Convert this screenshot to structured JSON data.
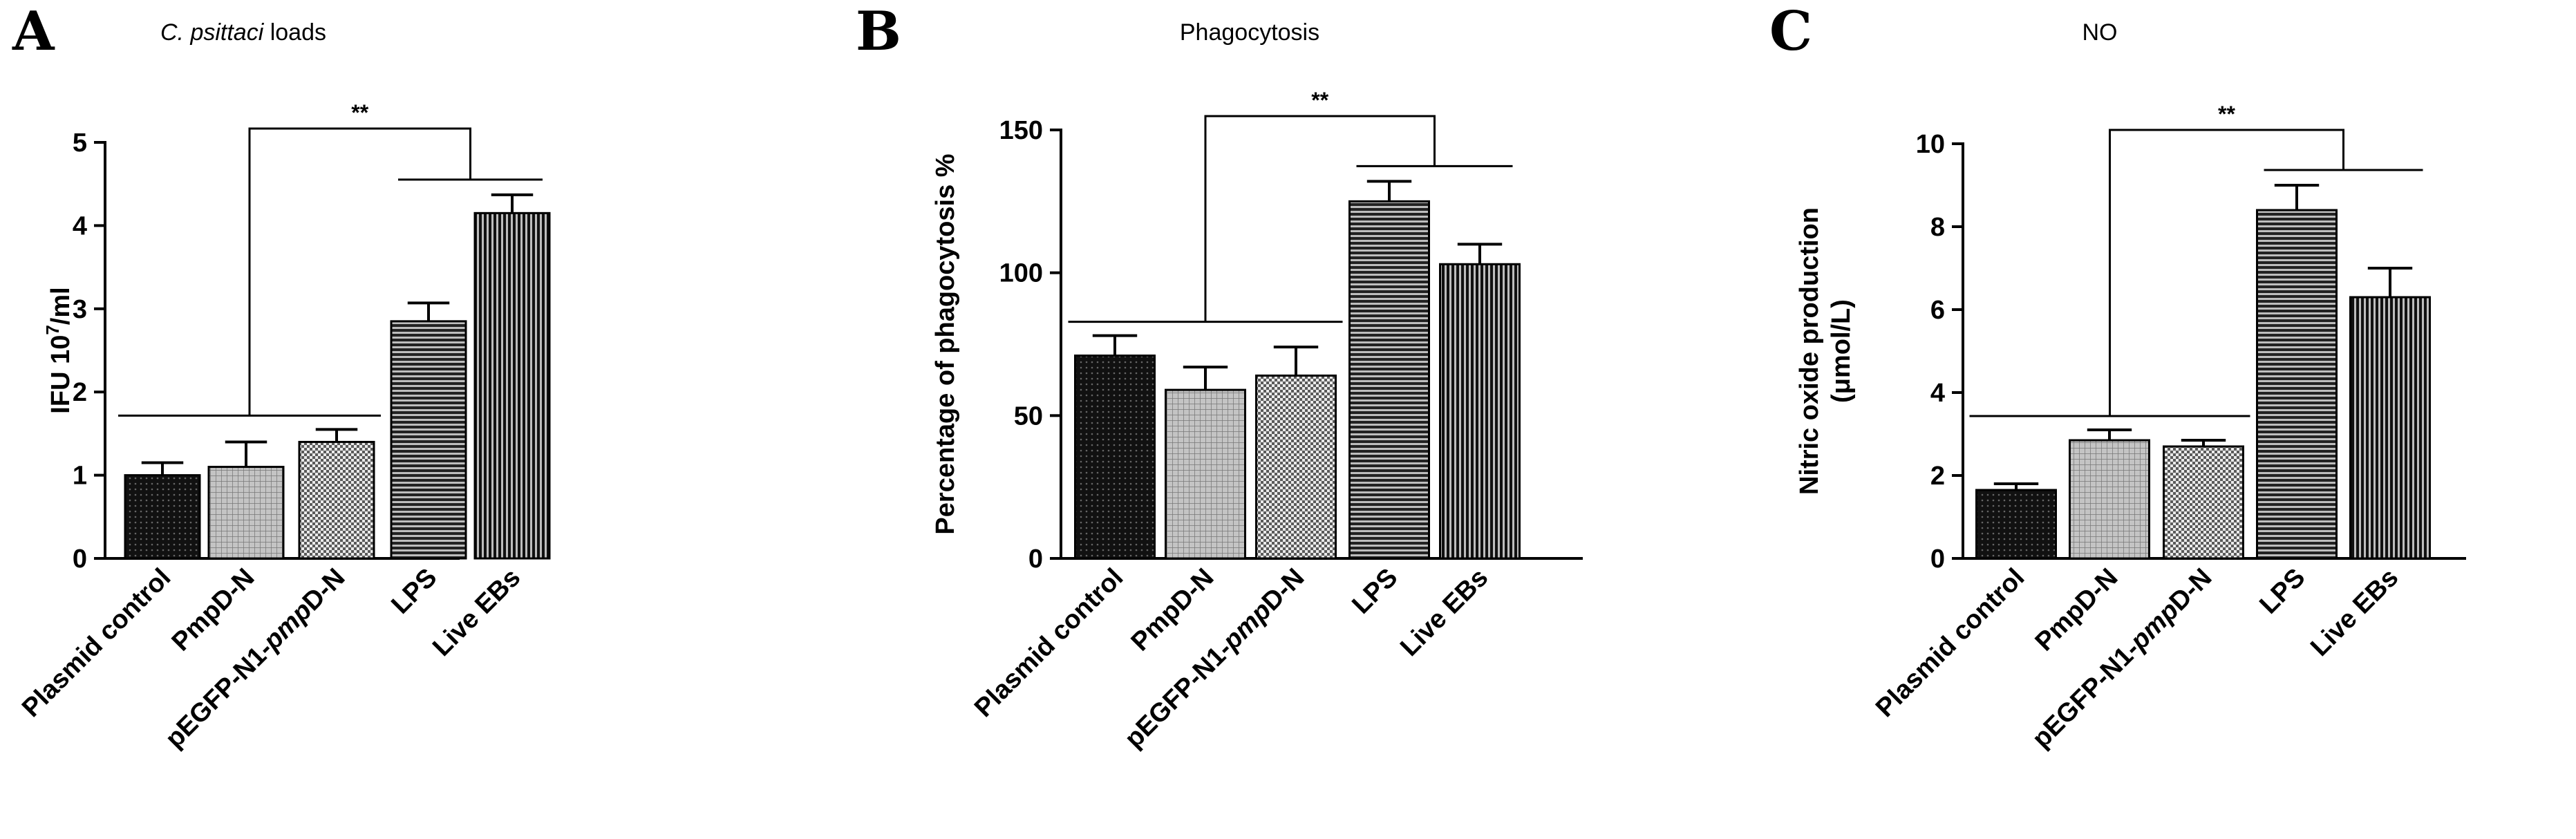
{
  "panels": [
    {
      "letter": "A",
      "title": "C. psittaci loads"
    },
    {
      "letter": "B",
      "title": "Phagocytosis"
    },
    {
      "letter": "C",
      "title": "NO"
    }
  ],
  "chart_data": [
    {
      "type": "bar",
      "title": "C. psittaci loads",
      "title_italic_part": "C. psittaci",
      "title_rest": " loads",
      "ylabel": "IFU 10^7/ml",
      "ylabel_parts": [
        "IFU 10",
        "7",
        "/ml"
      ],
      "ylim": [
        0,
        5
      ],
      "yticks": [
        "0",
        "1",
        "2",
        "3",
        "4",
        "5"
      ],
      "categories": [
        "Plasmid control",
        "PmpD-N",
        "pEGFP-N1-pmpD-N",
        "LPS",
        "Live EBs"
      ],
      "category_parts": [
        [
          "Plasmid control"
        ],
        [
          "PmpD-N"
        ],
        [
          "pEGFP-N1-",
          "pmp",
          "D-N"
        ],
        [
          "LPS"
        ],
        [
          "Live EBs"
        ]
      ],
      "values": [
        1.0,
        1.1,
        1.4,
        2.85,
        4.15
      ],
      "errors": [
        0.15,
        0.3,
        0.15,
        0.22,
        0.22
      ],
      "patterns": [
        "dots-dark",
        "grid-light",
        "checker",
        "hlines",
        "vlines"
      ],
      "significance": {
        "label": "**",
        "group_a": [
          0,
          2
        ],
        "group_b": [
          3,
          4
        ]
      },
      "grid": false
    },
    {
      "type": "bar",
      "title": "Phagocytosis",
      "ylabel": "Percentage of phagocytosis %",
      "ylim": [
        0,
        150
      ],
      "yticks": [
        "0",
        "50",
        "100",
        "150"
      ],
      "categories": [
        "Plasmid control",
        "PmpD-N",
        "pEGFP-N1-pmpD-N",
        "LPS",
        "Live EBs"
      ],
      "category_parts": [
        [
          "Plasmid control"
        ],
        [
          "PmpD-N"
        ],
        [
          "pEGFP-N1-",
          "pmp",
          "D-N"
        ],
        [
          "LPS"
        ],
        [
          "Live EBs"
        ]
      ],
      "values": [
        71,
        59,
        64,
        125,
        103
      ],
      "errors": [
        7,
        8,
        10,
        7,
        7
      ],
      "patterns": [
        "dots-dark",
        "grid-light",
        "checker",
        "hlines",
        "vlines"
      ],
      "significance": {
        "label": "**",
        "group_a": [
          0,
          2
        ],
        "group_b": [
          3,
          4
        ]
      },
      "grid": false
    },
    {
      "type": "bar",
      "title": "NO",
      "ylabel": "Nitric oxide production (μmol/L)",
      "ylabel_lines": [
        "Nitric oxide production",
        "(μmol/L)"
      ],
      "ylim": [
        0,
        10
      ],
      "yticks": [
        "0",
        "2",
        "4",
        "6",
        "8",
        "10"
      ],
      "categories": [
        "Plasmid control",
        "PmpD-N",
        "pEGFP-N1-pmpD-N",
        "LPS",
        "Live EBs"
      ],
      "category_parts": [
        [
          "Plasmid control"
        ],
        [
          "PmpD-N"
        ],
        [
          "pEGFP-N1-",
          "pmp",
          "D-N"
        ],
        [
          "LPS"
        ],
        [
          "Live EBs"
        ]
      ],
      "values": [
        1.65,
        2.85,
        2.7,
        8.4,
        6.3
      ],
      "errors": [
        0.15,
        0.25,
        0.15,
        0.6,
        0.7
      ],
      "patterns": [
        "dots-dark",
        "grid-light",
        "checker",
        "hlines",
        "vlines"
      ],
      "significance": {
        "label": "**",
        "group_a": [
          0,
          2
        ],
        "group_b": [
          3,
          4
        ]
      },
      "grid": false
    }
  ]
}
